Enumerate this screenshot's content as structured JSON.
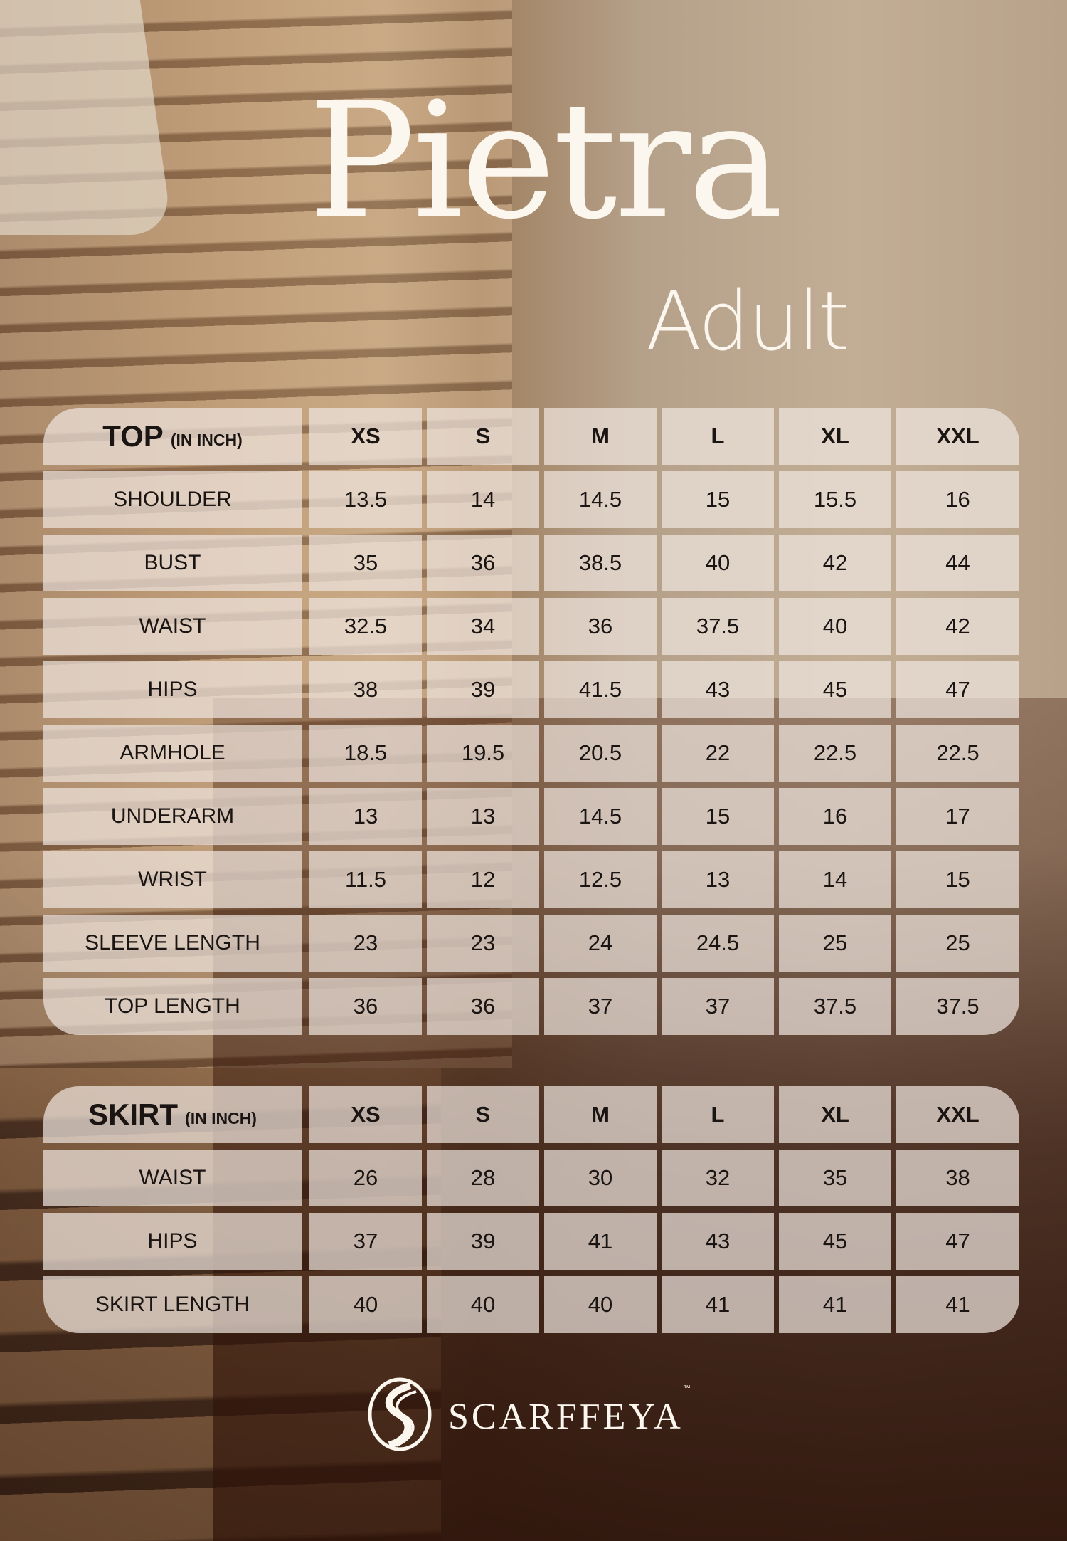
{
  "title": "Pietra",
  "subtitle": "Adult",
  "sizes": [
    "XS",
    "S",
    "M",
    "L",
    "XL",
    "XXL"
  ],
  "top_table": {
    "title": "TOP",
    "unit": "(IN INCH)",
    "rows": [
      {
        "label": "SHOULDER",
        "values": [
          "13.5",
          "14",
          "14.5",
          "15",
          "15.5",
          "16"
        ]
      },
      {
        "label": "BUST",
        "values": [
          "35",
          "36",
          "38.5",
          "40",
          "42",
          "44"
        ]
      },
      {
        "label": "WAIST",
        "values": [
          "32.5",
          "34",
          "36",
          "37.5",
          "40",
          "42"
        ]
      },
      {
        "label": "HIPS",
        "values": [
          "38",
          "39",
          "41.5",
          "43",
          "45",
          "47"
        ]
      },
      {
        "label": "ARMHOLE",
        "values": [
          "18.5",
          "19.5",
          "20.5",
          "22",
          "22.5",
          "22.5"
        ]
      },
      {
        "label": "UNDERARM",
        "values": [
          "13",
          "13",
          "14.5",
          "15",
          "16",
          "17"
        ]
      },
      {
        "label": "WRIST",
        "values": [
          "11.5",
          "12",
          "12.5",
          "13",
          "14",
          "15"
        ]
      },
      {
        "label": "SLEEVE LENGTH",
        "values": [
          "23",
          "23",
          "24",
          "24.5",
          "25",
          "25"
        ]
      },
      {
        "label": "TOP LENGTH",
        "values": [
          "36",
          "36",
          "37",
          "37",
          "37.5",
          "37.5"
        ]
      }
    ]
  },
  "skirt_table": {
    "title": "SKIRT",
    "unit": "(IN INCH)",
    "rows": [
      {
        "label": "WAIST",
        "values": [
          "26",
          "28",
          "30",
          "32",
          "35",
          "38"
        ]
      },
      {
        "label": "HIPS",
        "values": [
          "37",
          "39",
          "41",
          "43",
          "45",
          "47"
        ]
      },
      {
        "label": "SKIRT LENGTH",
        "values": [
          "40",
          "40",
          "40",
          "41",
          "41",
          "41"
        ]
      }
    ]
  },
  "brand": {
    "name": "SCARFFEYA",
    "trademark": "™",
    "icon": "scarffeya-s-logo-icon"
  }
}
